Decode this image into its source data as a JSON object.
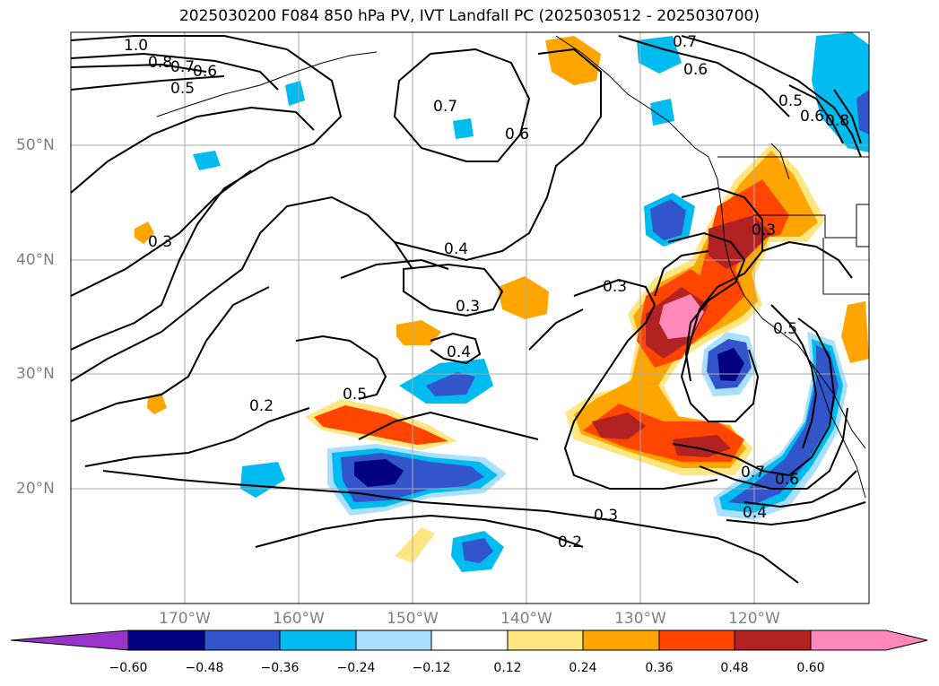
{
  "title": "2025030200 F084 850 hPa PV, IVT Landfall PC (2025030512 - 2025030700)",
  "map": {
    "lat_labels": [
      "50°N",
      "40°N",
      "30°N",
      "20°N"
    ],
    "lon_labels": [
      "170°W",
      "160°W",
      "150°W",
      "140°W",
      "130°W",
      "120°W"
    ],
    "lat_values": [
      50,
      40,
      30,
      20
    ],
    "lon_values": [
      -170,
      -160,
      -150,
      -140,
      -130,
      -120
    ],
    "extent": {
      "lon_min": -180,
      "lon_max": -110,
      "lat_min": 10,
      "lat_max": 60
    },
    "contour_labels": [
      "1.0",
      "0.8",
      "0.7",
      "0.6",
      "0.5",
      "0.7",
      "0.6",
      "0.7",
      "0.6",
      "0.5",
      "0.6",
      "0.8",
      "0.3",
      "0.4",
      "0.3",
      "0.4",
      "0.3",
      "0.3",
      "0.5",
      "0.5",
      "0.2",
      "0.7",
      "0.6",
      "0.4",
      "0.3",
      "0.2"
    ],
    "colors": {
      "purple": "#9933cc",
      "navy": "#000080",
      "blue": "#3355cc",
      "deepsky": "#00bbf0",
      "lightblue": "#aae0ff",
      "white": "#ffffff",
      "yellow": "#ffe680",
      "orange": "#ffa500",
      "orangered": "#ff4500",
      "firebrick": "#b22222",
      "pink": "#ff88bb"
    }
  },
  "colorbar": {
    "ticks": [
      "−0.60",
      "−0.48",
      "−0.36",
      "−0.24",
      "−0.12",
      "0.12",
      "0.24",
      "0.36",
      "0.48",
      "0.60"
    ],
    "tick_values": [
      -0.6,
      -0.48,
      -0.36,
      -0.24,
      -0.12,
      0.12,
      0.24,
      0.36,
      0.48,
      0.6
    ]
  }
}
